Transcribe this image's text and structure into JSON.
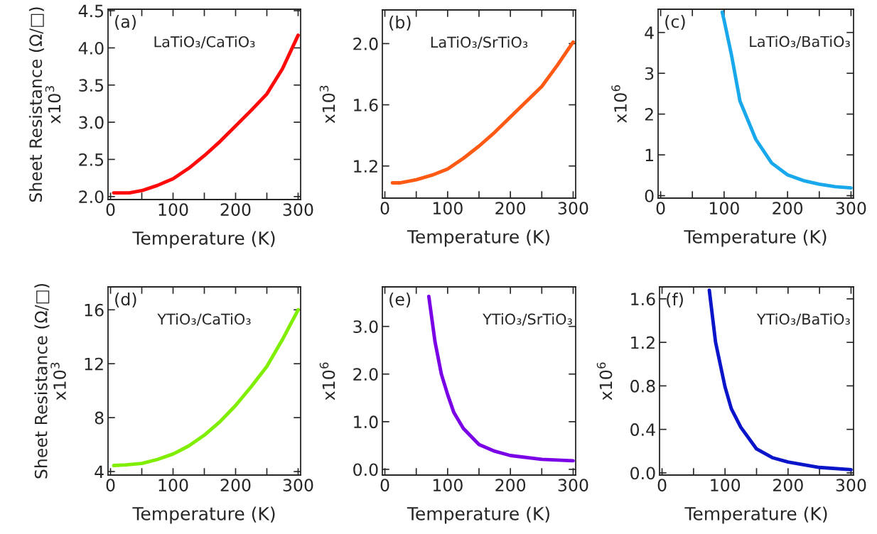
{
  "chart_data": [
    {
      "type": "line",
      "xlabel": "Temperature (K)",
      "ylabel": "Sheet Resistance (Ω/□)\nx10$^{3}$",
      "annotations": [
        "(a)",
        "LaTiO₃/CaTiO₃"
      ],
      "series": [
        {
          "color": "#ff0a0a",
          "x": [
            5,
            30,
            50,
            75,
            100,
            125,
            150,
            175,
            200,
            225,
            250,
            275,
            300
          ],
          "values": [
            2.05,
            2.05,
            2.08,
            2.15,
            2.24,
            2.38,
            2.55,
            2.74,
            2.95,
            3.16,
            3.38,
            3.72,
            4.17
          ]
        }
      ],
      "xlim": [
        -4,
        304
      ],
      "xticks": [
        0,
        {
          "value": 50,
          "label": null
        },
        100,
        {
          "value": 150,
          "label": null
        },
        200,
        {
          "value": 250,
          "label": null
        },
        300
      ],
      "ylim": [
        1.96,
        4.52
      ],
      "yticks": [
        {
          "value": 2.0,
          "label": "2.0"
        },
        2.5,
        {
          "value": 3.0,
          "label": "3.0"
        },
        3.5,
        {
          "value": 4.0,
          "label": "4.0"
        },
        4.5
      ],
      "grid": false,
      "legend": false
    },
    {
      "type": "line",
      "xlabel": "Temperature (K)",
      "ylabel": "x10$^{3}$",
      "annotations": [
        "(b)",
        "LaTiO₃/SrTiO₃"
      ],
      "series": [
        {
          "color": "#ff5a14",
          "x": [
            12,
            25,
            50,
            75,
            100,
            125,
            150,
            175,
            200,
            225,
            250,
            275,
            300
          ],
          "values": [
            1.09,
            1.09,
            1.11,
            1.14,
            1.18,
            1.25,
            1.33,
            1.42,
            1.52,
            1.62,
            1.72,
            1.86,
            2.01
          ]
        }
      ],
      "xlim": [
        -4,
        304
      ],
      "xticks": [
        0,
        {
          "value": 50,
          "label": null
        },
        100,
        {
          "value": 150,
          "label": null
        },
        200,
        {
          "value": 250,
          "label": null
        },
        300
      ],
      "ylim": [
        0.99,
        2.22
      ],
      "yticks": [
        1.2,
        1.6,
        {
          "value": 2.0,
          "label": "2.0"
        }
      ],
      "grid": false,
      "legend": false
    },
    {
      "type": "line",
      "xlabel": "Temperature (K)",
      "ylabel": "x10$^{6}$",
      "annotations": [
        "(c)",
        "LaTiO₃/BaTiO₃"
      ],
      "series": [
        {
          "color": "#1aa8ec",
          "x": [
            97,
            100,
            112,
            125,
            150,
            175,
            200,
            225,
            250,
            275,
            300
          ],
          "values": [
            4.5,
            4.3,
            3.42,
            2.32,
            1.38,
            0.8,
            0.51,
            0.37,
            0.28,
            0.22,
            0.19
          ]
        }
      ],
      "xlim": [
        -4,
        304
      ],
      "xticks": [
        0,
        {
          "value": 50,
          "label": null
        },
        100,
        {
          "value": 150,
          "label": null
        },
        200,
        {
          "value": 250,
          "label": null
        },
        300
      ],
      "ylim": [
        -0.06,
        4.57
      ],
      "yticks": [
        0,
        1,
        2,
        3,
        4
      ],
      "grid": false,
      "legend": false
    },
    {
      "type": "line",
      "xlabel": "Temperature (K)",
      "ylabel": "Sheet Resistance (Ω/□)\nx10$^{3}$",
      "annotations": [
        "(d)",
        "YTiO₃/CaTiO₃"
      ],
      "series": [
        {
          "color": "#80ee00",
          "x": [
            5,
            25,
            50,
            75,
            100,
            125,
            150,
            175,
            200,
            225,
            250,
            275,
            300
          ],
          "values": [
            4.45,
            4.5,
            4.6,
            4.9,
            5.3,
            5.9,
            6.7,
            7.7,
            8.9,
            10.3,
            11.8,
            13.8,
            16.0
          ]
        }
      ],
      "xlim": [
        -4,
        304
      ],
      "xticks": [
        0,
        {
          "value": 50,
          "label": null
        },
        100,
        {
          "value": 150,
          "label": null
        },
        200,
        {
          "value": 250,
          "label": null
        },
        300
      ],
      "ylim": [
        3.74,
        17.7
      ],
      "yticks": [
        4,
        8,
        12,
        16
      ],
      "grid": false,
      "legend": false
    },
    {
      "type": "line",
      "xlabel": "Temperature (K)",
      "ylabel": "x10$^{6}$",
      "annotations": [
        "(e)",
        "YTiO₃/SrTiO₃"
      ],
      "series": [
        {
          "color": "#7a00e6",
          "x": [
            70,
            80,
            90,
            100,
            110,
            125,
            150,
            175,
            200,
            250,
            300
          ],
          "values": [
            3.63,
            2.67,
            2.0,
            1.57,
            1.19,
            0.86,
            0.52,
            0.38,
            0.29,
            0.21,
            0.18
          ]
        }
      ],
      "xlim": [
        -4,
        304
      ],
      "xticks": [
        0,
        {
          "value": 50,
          "label": null
        },
        100,
        {
          "value": 150,
          "label": null
        },
        200,
        {
          "value": 250,
          "label": null
        },
        300
      ],
      "ylim": [
        -0.12,
        3.83
      ],
      "yticks": [
        {
          "value": 0,
          "label": "0.0"
        },
        {
          "value": 1,
          "label": "1.0"
        },
        {
          "value": 2,
          "label": "2.0"
        },
        {
          "value": 3,
          "label": "3.0"
        }
      ],
      "grid": false,
      "legend": false
    },
    {
      "type": "line",
      "xlabel": "Temperature (K)",
      "ylabel": "x10$^{6}$",
      "annotations": [
        "(f)",
        "YTiO₃/BaTiO₃"
      ],
      "series": [
        {
          "color": "#0a14c8",
          "x": [
            75,
            85,
            100,
            110,
            125,
            150,
            175,
            200,
            250,
            300
          ],
          "values": [
            1.68,
            1.2,
            0.79,
            0.59,
            0.42,
            0.22,
            0.14,
            0.1,
            0.05,
            0.03
          ]
        }
      ],
      "xlim": [
        -4,
        304
      ],
      "xticks": [
        0,
        {
          "value": 50,
          "label": null
        },
        100,
        {
          "value": 150,
          "label": null
        },
        200,
        {
          "value": 250,
          "label": null
        },
        300
      ],
      "ylim": [
        -0.02,
        1.71
      ],
      "yticks": [
        {
          "value": 0,
          "label": "0.0"
        },
        0.4,
        0.8,
        1.2,
        1.6
      ],
      "grid": false,
      "legend": false
    }
  ]
}
